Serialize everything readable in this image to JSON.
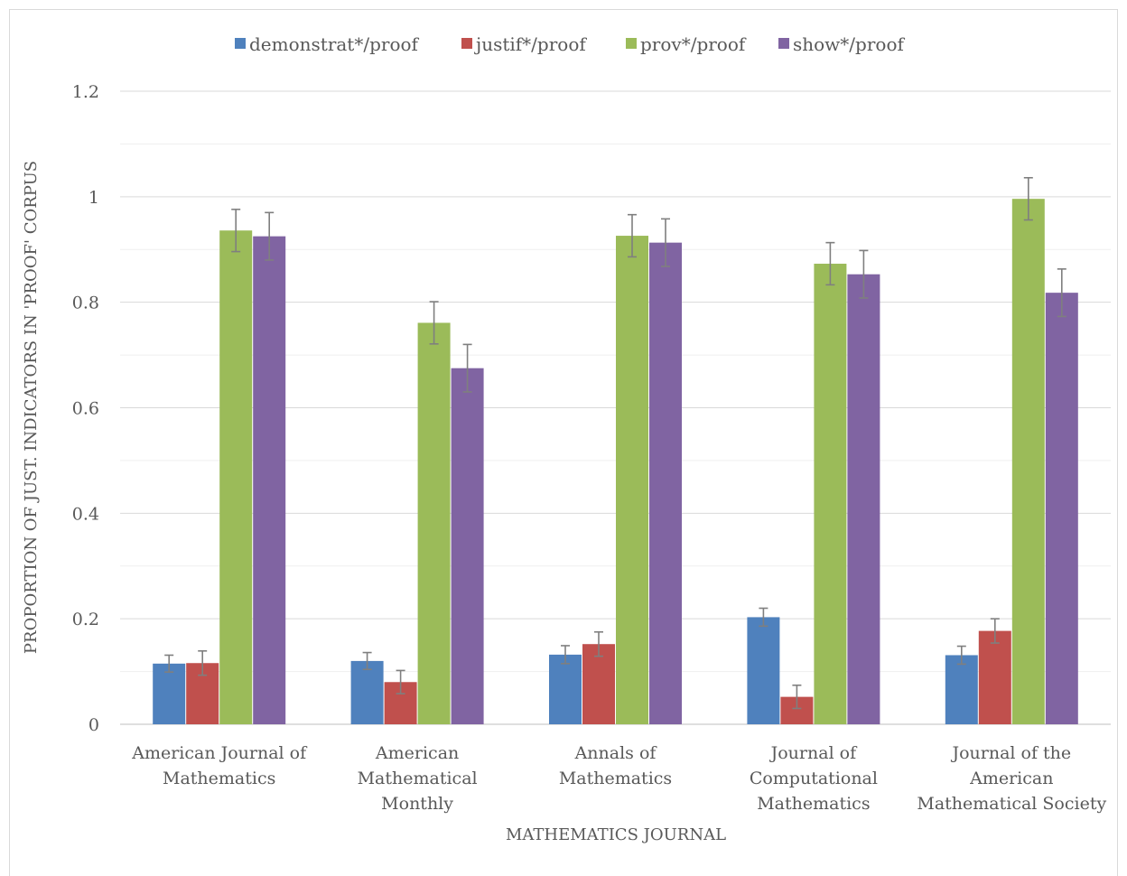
{
  "chart_data": {
    "type": "bar",
    "title": "",
    "xlabel": "MATHEMATICS JOURNAL",
    "ylabel": "PROPORTION OF JUST. INDICATORS IN 'PROOF' CORPUS",
    "ylim": [
      0,
      1.2
    ],
    "yticks": [
      "0",
      "0.2",
      "0.4",
      "0.6",
      "0.8",
      "1",
      "1.2"
    ],
    "grid": true,
    "legend_position": "top",
    "categories": [
      [
        "American Journal of",
        "Mathematics"
      ],
      [
        "American",
        "Mathematical",
        "Monthly"
      ],
      [
        "Annals of",
        "Mathematics"
      ],
      [
        "Journal of",
        "Computational",
        "Mathematics"
      ],
      [
        "Journal of the",
        "American",
        "Mathematical Society"
      ]
    ],
    "series": [
      {
        "name": "demonstrat*/proof",
        "color": "#4f81bd",
        "values": [
          0.115,
          0.12,
          0.132,
          0.203,
          0.131
        ],
        "errors": [
          0.016,
          0.016,
          0.017,
          0.017,
          0.017
        ]
      },
      {
        "name": "justif*/proof",
        "color": "#c0504d",
        "values": [
          0.116,
          0.08,
          0.152,
          0.052,
          0.177
        ],
        "errors": [
          0.023,
          0.022,
          0.023,
          0.022,
          0.023
        ]
      },
      {
        "name": "prov*/proof",
        "color": "#9bbb59",
        "values": [
          0.936,
          0.761,
          0.926,
          0.873,
          0.996
        ],
        "errors": [
          0.04,
          0.04,
          0.04,
          0.04,
          0.04
        ]
      },
      {
        "name": "show*/proof",
        "color": "#8064a2",
        "values": [
          0.925,
          0.675,
          0.913,
          0.853,
          0.818
        ],
        "errors": [
          0.045,
          0.045,
          0.045,
          0.045,
          0.045
        ]
      }
    ]
  }
}
